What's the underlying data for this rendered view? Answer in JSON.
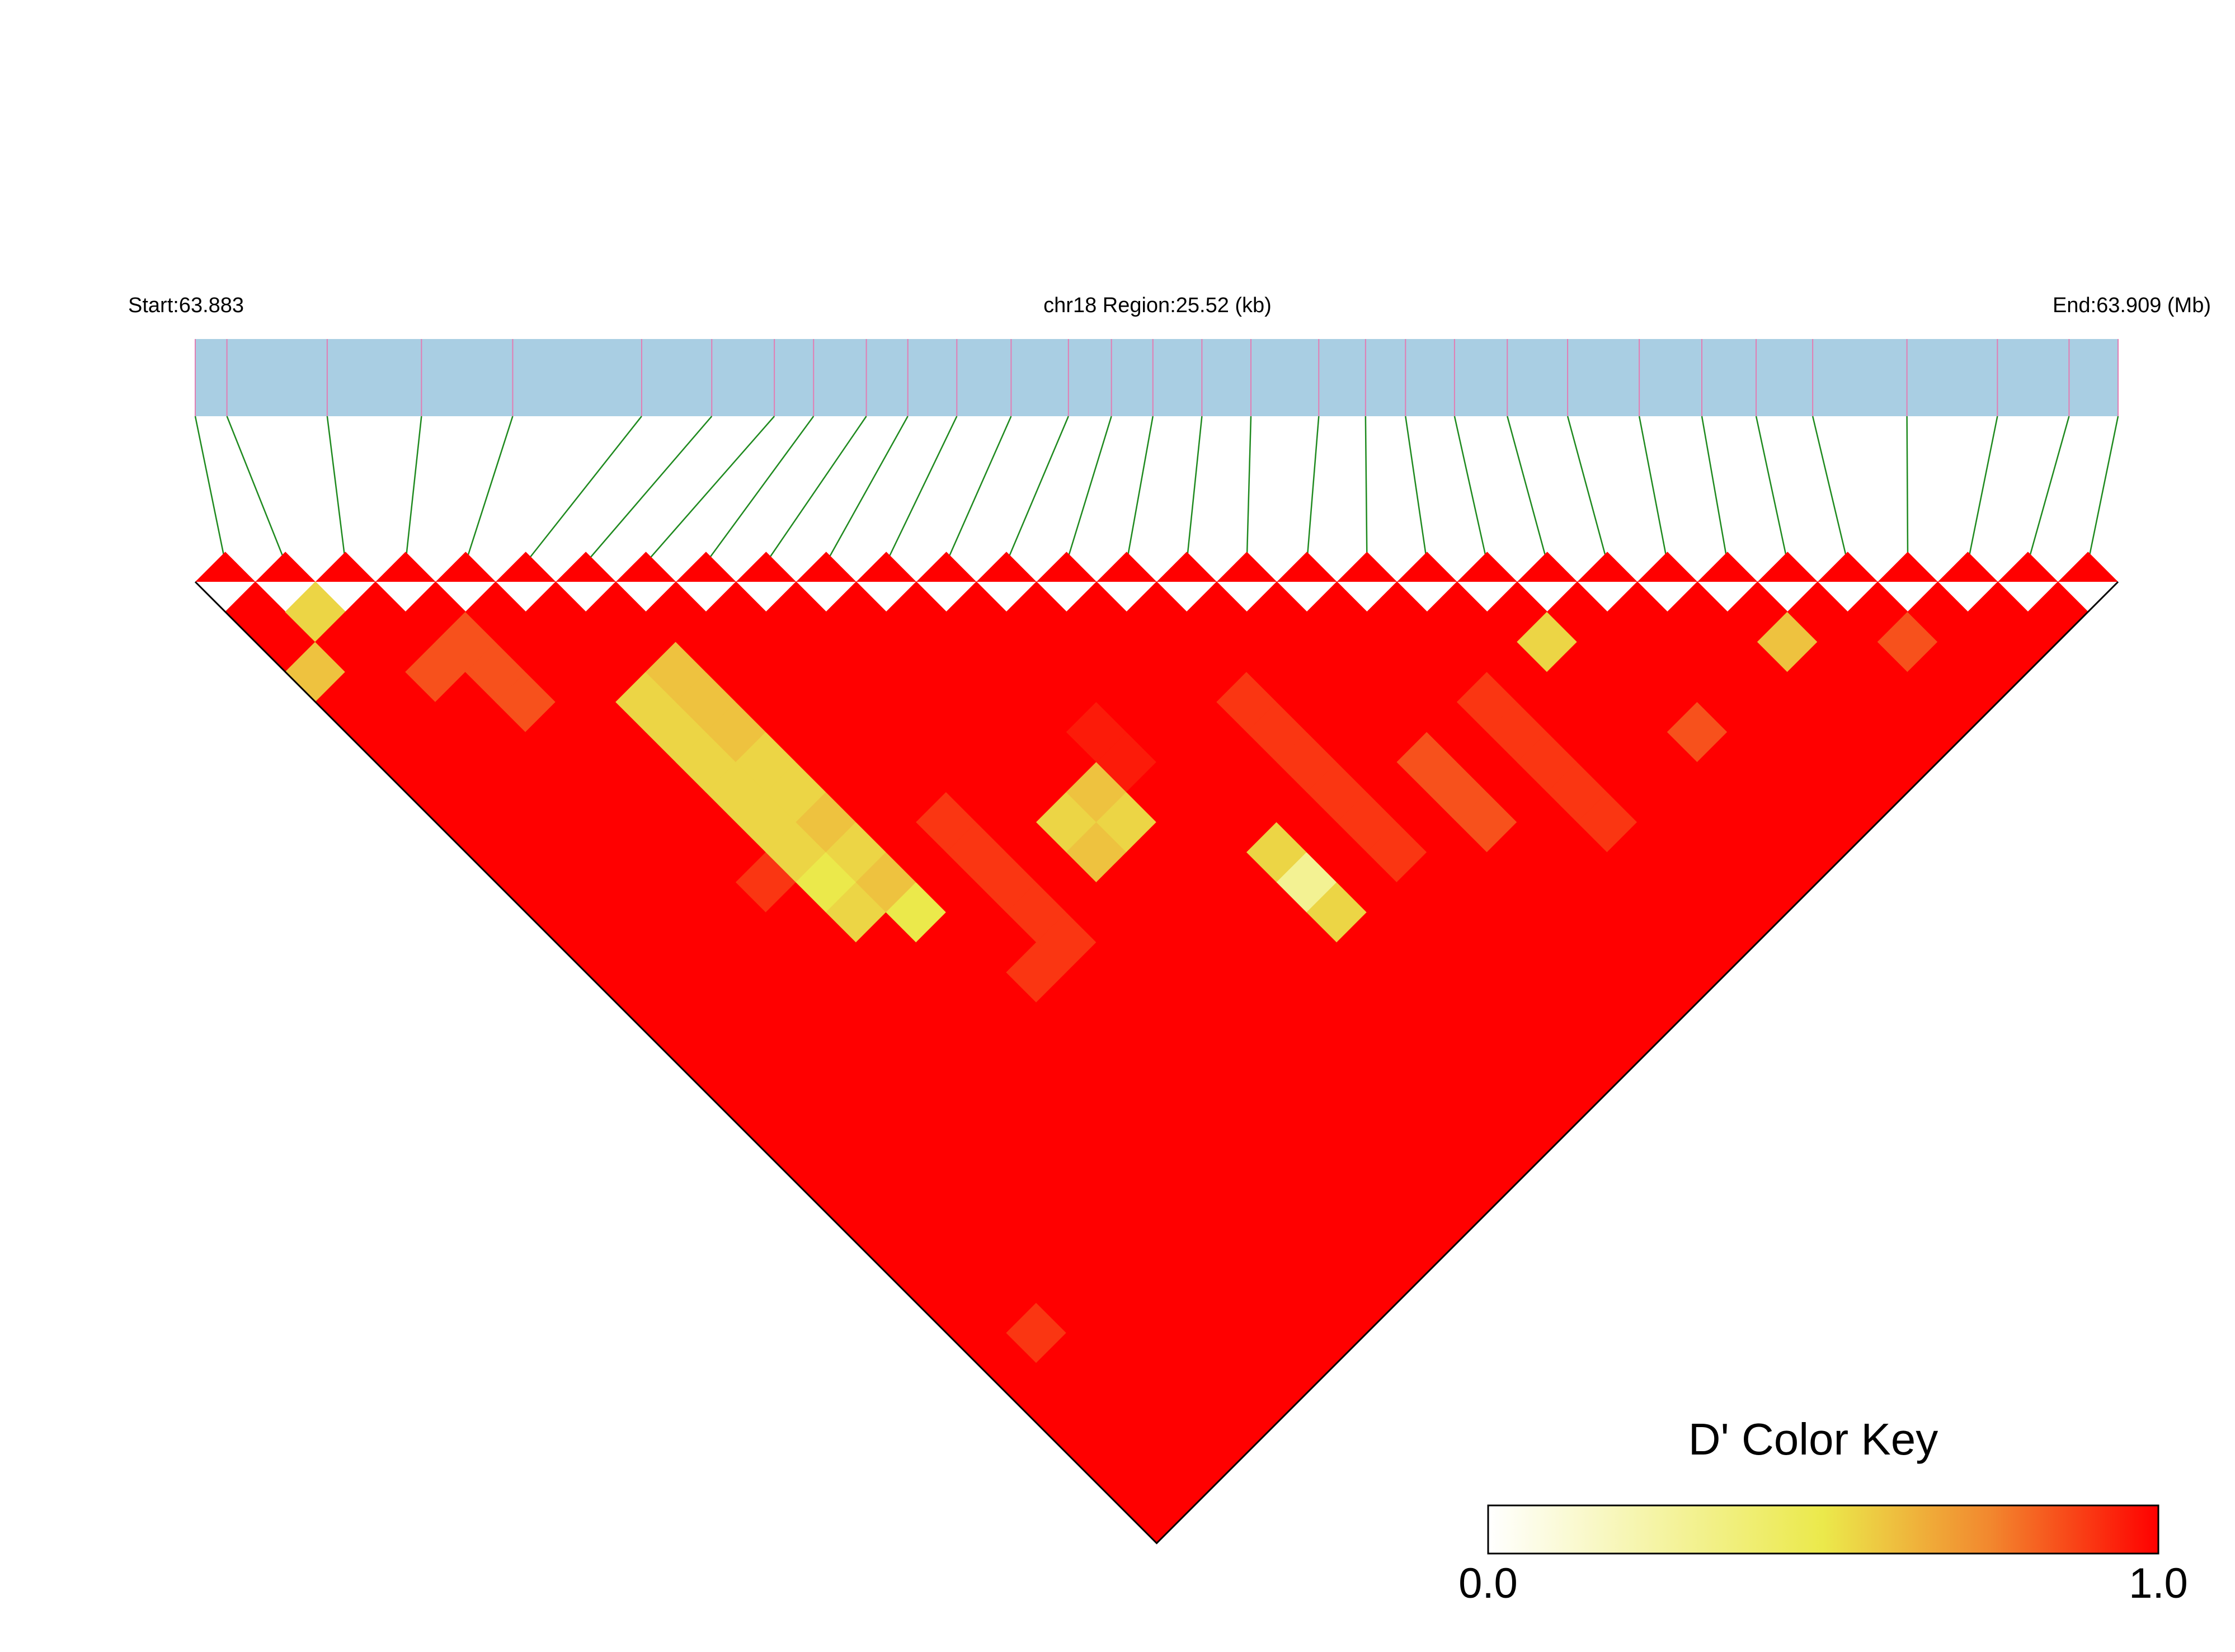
{
  "chart_data": {
    "type": "ld-heatmap",
    "start_label": "Start:63.883",
    "region_label": "chr18 Region:25.52 (kb)",
    "end_label": "End:63.909 (Mb)",
    "xlim": [
      63.8832,
      63.9087
    ],
    "snp_positions": [
      63.8832,
      63.88362,
      63.88495,
      63.8862,
      63.88741,
      63.88912,
      63.89005,
      63.89088,
      63.8914,
      63.8921,
      63.89265,
      63.8933,
      63.89402,
      63.89478,
      63.89535,
      63.8959,
      63.89655,
      63.8972,
      63.8981,
      63.89872,
      63.89925,
      63.8999,
      63.9006,
      63.9014,
      63.90235,
      63.90318,
      63.9039,
      63.90465,
      63.9059,
      63.9071,
      63.90805,
      63.9087
    ],
    "values": [
      [
        1,
        1,
        0.6,
        1,
        1,
        1,
        1,
        1,
        1,
        1,
        1,
        1,
        1,
        1,
        1,
        1,
        1,
        1,
        1,
        1,
        1,
        1,
        1,
        1,
        1,
        1,
        1,
        1,
        1,
        1,
        1
      ],
      [
        0.55,
        1,
        1,
        1,
        1,
        1,
        1,
        1,
        1,
        1,
        1,
        1,
        1,
        1,
        1,
        1,
        1,
        1,
        1,
        1,
        1,
        1,
        1,
        1,
        0.9,
        1,
        1,
        1,
        1,
        1
      ],
      [
        1,
        1,
        0.85,
        1,
        1,
        1,
        1,
        1,
        1,
        1,
        1,
        1,
        1,
        1,
        1,
        1,
        1,
        1,
        1,
        1,
        1,
        1,
        1,
        1,
        1,
        1,
        1,
        1,
        1
      ],
      [
        1,
        0.85,
        0.85,
        0.85,
        1,
        1,
        1,
        1,
        1,
        1,
        1,
        1,
        1,
        1,
        1,
        1,
        1,
        1,
        1,
        1,
        1,
        1,
        1,
        1,
        1,
        1,
        1,
        1
      ],
      [
        1,
        1,
        1,
        1,
        1,
        1,
        1,
        1,
        1,
        0.9,
        1,
        1,
        1,
        1,
        1,
        1,
        1,
        1,
        1,
        1,
        1,
        1,
        1,
        1,
        1,
        1,
        1
      ],
      [
        1,
        1,
        1,
        0.55,
        0.55,
        0.55,
        0.55,
        0.55,
        0.55,
        0.5,
        0.55,
        1,
        1,
        1,
        1,
        1,
        1,
        1,
        1,
        1,
        1,
        1,
        1,
        1,
        1,
        1
      ],
      [
        1,
        1,
        0.6,
        0.6,
        0.6,
        0.55,
        0.55,
        0.6,
        0.55,
        0.6,
        0.5,
        1,
        1,
        1,
        1,
        1,
        1,
        1,
        1,
        1,
        1,
        1,
        1,
        1,
        1
      ],
      [
        1,
        1,
        1,
        1,
        1,
        1,
        1,
        1,
        1,
        1,
        1,
        1,
        0.9,
        1,
        1,
        1,
        1,
        1,
        1,
        1,
        1,
        1,
        1,
        1
      ],
      [
        1,
        1,
        1,
        1,
        1,
        1,
        1,
        0.9,
        0.9,
        0.9,
        0.9,
        0.9,
        1,
        1,
        1,
        1,
        1,
        1,
        1,
        1,
        1,
        1,
        1
      ],
      [
        1,
        1,
        1,
        1,
        1,
        1,
        1,
        1,
        1,
        1,
        1,
        1,
        1,
        1,
        1,
        1,
        1,
        1,
        1,
        1,
        1,
        1
      ],
      [
        1,
        1,
        1,
        1,
        1,
        1,
        1,
        0.55,
        0.6,
        1,
        1,
        1,
        1,
        1,
        1,
        1,
        1,
        1,
        1,
        1,
        1
      ],
      [
        1,
        1,
        1,
        1,
        1,
        1,
        0.6,
        0.55,
        1,
        1,
        1,
        1,
        1,
        1,
        1,
        1,
        1,
        1,
        1,
        1
      ],
      [
        1,
        1,
        1,
        1,
        0.95,
        0.95,
        1,
        1,
        1,
        1,
        1,
        1,
        1,
        1,
        1,
        1,
        1,
        1,
        1
      ],
      [
        1,
        1,
        1,
        1,
        1,
        1,
        1,
        1,
        0.55,
        0.3,
        0.55,
        1,
        1,
        1,
        1,
        1,
        1,
        1
      ],
      [
        1,
        1,
        1,
        1,
        1,
        1,
        1,
        1,
        1,
        1,
        1,
        1,
        1,
        1,
        1,
        1,
        1
      ],
      [
        1,
        1,
        1,
        0.9,
        0.9,
        0.9,
        0.9,
        0.9,
        0.9,
        1,
        1,
        1,
        1,
        1,
        1,
        1
      ],
      [
        1,
        1,
        1,
        1,
        1,
        1,
        1,
        1,
        1,
        1,
        1,
        1,
        1,
        1,
        1
      ],
      [
        1,
        1,
        1,
        1,
        1,
        0.85,
        0.85,
        0.85,
        1,
        1,
        1,
        1,
        1,
        1
      ],
      [
        1,
        1,
        1,
        1,
        1,
        1,
        1,
        1,
        1,
        1,
        1,
        1,
        1
      ],
      [
        1,
        1,
        1,
        0.9,
        0.9,
        0.9,
        0.9,
        0.9,
        1,
        1,
        1,
        1
      ],
      [
        1,
        1,
        1,
        1,
        1,
        1,
        1,
        1,
        1,
        1,
        1
      ],
      [
        1,
        0.55,
        1,
        1,
        1,
        1,
        1,
        1,
        1,
        1
      ],
      [
        1,
        1,
        1,
        1,
        0.85,
        1,
        1,
        1,
        1
      ],
      [
        1,
        1,
        1,
        1,
        1,
        1,
        1,
        1
      ],
      [
        1,
        1,
        1,
        1,
        1,
        1,
        1
      ],
      [
        1,
        0.6,
        1,
        1,
        1,
        1
      ],
      [
        1,
        1,
        1,
        1,
        1
      ],
      [
        1,
        0.85,
        1,
        1
      ],
      [
        1,
        1,
        1
      ],
      [
        1,
        1
      ],
      [
        1
      ]
    ],
    "colorscale": [
      [
        0,
        "#ffffff"
      ],
      [
        0.5,
        "#ebe94b"
      ],
      [
        0.75,
        "#f2872e"
      ],
      [
        1,
        "#ff0000"
      ]
    ],
    "color_key": {
      "title": "D' Color Key",
      "range": [
        0,
        1
      ],
      "ticks": [
        {
          "value": 0,
          "label": "0.0"
        },
        {
          "value": 1,
          "label": "1.0"
        }
      ]
    },
    "bar_color": "#a9cee3",
    "snp_color": "#e27db3",
    "link_color": "#1f8a1f",
    "border_color": "#000000"
  }
}
